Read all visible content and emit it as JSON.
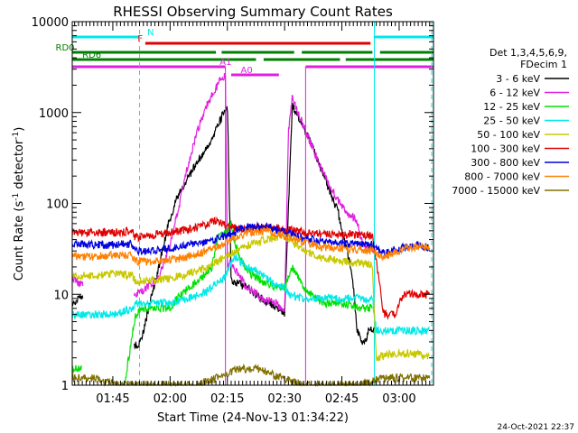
{
  "chart_data": {
    "type": "line",
    "title": "RHESSI Observing Summary Count Rates",
    "xlabel": "Start Time (24-Nov-13 01:34:22)",
    "ylabel": "Count Rate (s",
    "ylabel_sup": "-1",
    "ylabel_mid": " detector",
    "ylabel_sup2": "-1",
    "ylabel_end": ")",
    "footer": "24-Oct-2021 22:37",
    "y_scale": "log",
    "ylim": [
      1,
      10000
    ],
    "xlim": [
      "01:34:22",
      "03:09:00"
    ],
    "x_ticks": [
      "01:45",
      "02:00",
      "02:15",
      "02:30",
      "02:45",
      "03:00"
    ],
    "y_ticks": [
      "1",
      "10",
      "100",
      "1000",
      "10000"
    ],
    "legend": {
      "placement": "right",
      "header": [
        "Det 1,3,4,5,6,9,",
        "FDecim 1"
      ],
      "entries": [
        {
          "label": "3 - 6 keV",
          "color": "#000000"
        },
        {
          "label": "6 - 12 keV",
          "color": "#e020e0"
        },
        {
          "label": "12 - 25 keV",
          "color": "#00e000"
        },
        {
          "label": "25 - 50 keV",
          "color": "#00e8e8"
        },
        {
          "label": "50 - 100 keV",
          "color": "#c8c800"
        },
        {
          "label": "100 - 300 keV",
          "color": "#e00000"
        },
        {
          "label": "300 - 800 keV",
          "color": "#0000e0"
        },
        {
          "label": "800 - 7000 keV",
          "color": "#ff8000"
        },
        {
          "label": "7000 - 15000 keV",
          "color": "#807000"
        }
      ]
    },
    "flags": [
      {
        "name": "N",
        "color": "#00e8e8",
        "segments": [
          [
            "01:34:22",
            "01:52:00"
          ],
          [
            "02:53:30",
            "03:09:00"
          ]
        ],
        "label_at": "01:54:00"
      },
      {
        "name": "F",
        "color": "#e00000",
        "segments": [
          [
            "01:53:30",
            "02:52:30"
          ]
        ],
        "label_at": "01:51:30"
      },
      {
        "name": "RD0",
        "color": "#008000",
        "segments": [
          [
            "01:34:22",
            "02:12:00"
          ],
          [
            "02:13:30",
            "02:32:30"
          ],
          [
            "02:34:30",
            "02:53:00"
          ],
          [
            "02:55:00",
            "03:09:00"
          ]
        ],
        "label_at": "01:30:00"
      },
      {
        "name": "RD6",
        "color": "#008000",
        "segments": [
          [
            "01:34:22",
            "02:22:30"
          ],
          [
            "02:24:30",
            "02:44:30"
          ],
          [
            "02:46:00",
            "03:09:00"
          ]
        ],
        "label_at": "01:37:00"
      },
      {
        "name": "A1",
        "color": "#e020e0",
        "segments": [
          [
            "01:34:22",
            "02:14:30"
          ],
          [
            "02:35:30",
            "03:09:00"
          ]
        ],
        "label_at": "02:13:00"
      },
      {
        "name": "A0",
        "color": "#e020e0",
        "segments": [
          [
            "02:16:00",
            "02:28:30"
          ]
        ],
        "label_at": "02:18:30"
      }
    ],
    "series": [
      {
        "name": "3 - 6 keV",
        "color": "#000000",
        "gaps": [
          [
            "01:37:10",
            "01:50:30"
          ]
        ],
        "x": [
          "01:34:22",
          "01:36:30",
          "01:50:30",
          "01:51:30",
          "01:53:00",
          "01:57:00",
          "02:00:00",
          "02:02:00",
          "02:05:00",
          "02:08:00",
          "02:11:00",
          "02:13:00",
          "02:14:30",
          "02:15:00",
          "02:16:00",
          "02:20:00",
          "02:24:00",
          "02:28:00",
          "02:29:00",
          "02:30:00",
          "02:32:00",
          "02:35:00",
          "02:38:00",
          "02:41:00",
          "02:44:00",
          "02:46:00",
          "02:47:00",
          "02:48:00",
          "02:49:00",
          "02:50:00",
          "02:51:00",
          "02:52:00",
          "02:53:30"
        ],
        "y": [
          8,
          9,
          3,
          2.5,
          4,
          20,
          70,
          120,
          200,
          330,
          500,
          800,
          1100,
          1200,
          14,
          12,
          9,
          7,
          7,
          6,
          1200,
          700,
          350,
          170,
          80,
          35,
          22,
          12,
          4,
          3,
          3,
          4,
          4
        ]
      },
      {
        "name": "6 - 12 keV",
        "color": "#e020e0",
        "gaps": [
          [
            "01:37:10",
            "01:50:30"
          ]
        ],
        "x": [
          "01:34:22",
          "01:36:30",
          "01:50:30",
          "01:52:00",
          "01:54:00",
          "01:57:00",
          "02:00:00",
          "02:02:00",
          "02:04:00",
          "02:07:00",
          "02:10:00",
          "02:13:00",
          "02:14:30",
          "02:15:00",
          "02:16:00",
          "02:20:00",
          "02:24:00",
          "02:28:00",
          "02:29:00",
          "02:30:00",
          "02:31:00",
          "02:32:00",
          "02:35:00",
          "02:38:00",
          "02:41:00",
          "02:44:00",
          "02:47:00",
          "02:49:00",
          "02:50:00",
          "02:51:00",
          "02:52:00",
          "02:53:30"
        ],
        "y": [
          15,
          13,
          10,
          10,
          12,
          15,
          35,
          80,
          200,
          600,
          1300,
          2200,
          2600,
          20,
          22,
          12,
          9,
          8,
          7,
          7,
          600,
          1500,
          700,
          350,
          180,
          110,
          75,
          65,
          40,
          35,
          32,
          30
        ]
      },
      {
        "name": "12 - 25 keV",
        "color": "#00e000",
        "gaps": [
          [
            "01:37:00",
            "01:48:00"
          ]
        ],
        "x": [
          "01:34:22",
          "01:36:30",
          "01:48:00",
          "01:51:00",
          "01:53:00",
          "01:55:00",
          "01:58:00",
          "02:00:00",
          "02:02:00",
          "02:05:00",
          "02:08:00",
          "02:11:00",
          "02:12:00",
          "02:13:00",
          "02:14:00",
          "02:15:00",
          "02:16:00",
          "02:17:00",
          "02:20:00",
          "02:24:00",
          "02:28:00",
          "02:30:00",
          "02:32:00",
          "02:35:00",
          "02:40:00",
          "02:45:00",
          "02:50:00",
          "02:53:00"
        ],
        "y": [
          1.5,
          1.5,
          1,
          6,
          7,
          7,
          7,
          7,
          9,
          12,
          15,
          20,
          35,
          45,
          45,
          50,
          60,
          35,
          18,
          14,
          12,
          12,
          20,
          12,
          8,
          8,
          7,
          7
        ]
      },
      {
        "name": "25 - 50 keV",
        "color": "#00e8e8",
        "x": [
          "01:34:22",
          "01:40:00",
          "01:46:00",
          "01:50:00",
          "01:51:00",
          "01:55:00",
          "02:00:00",
          "02:05:00",
          "02:10:00",
          "02:14:00",
          "02:17:00",
          "02:20:00",
          "02:23:00",
          "02:27:00",
          "02:30:00",
          "02:31:00",
          "02:35:00",
          "02:40:00",
          "02:45:00",
          "02:50:00",
          "02:53:00",
          "02:54:00",
          "02:56:00",
          "03:00:00",
          "03:05:00",
          "03:08:00"
        ],
        "y": [
          6,
          6,
          6,
          7,
          8,
          8,
          8,
          9,
          11,
          15,
          26,
          20,
          18,
          13,
          12,
          10,
          9,
          9,
          9,
          9,
          9,
          4,
          4,
          4,
          4,
          4
        ]
      },
      {
        "name": "50 - 100 keV",
        "color": "#c8c800",
        "x": [
          "01:34:22",
          "01:40:00",
          "01:46:00",
          "01:50:00",
          "01:51:00",
          "01:55:00",
          "02:00:00",
          "02:05:00",
          "02:10:00",
          "02:15:00",
          "02:20:00",
          "02:25:00",
          "02:30:00",
          "02:35:00",
          "02:40:00",
          "02:45:00",
          "02:50:00",
          "02:53:00",
          "02:54:00",
          "02:58:00",
          "03:02:00",
          "03:05:00",
          "03:08:00"
        ],
        "y": [
          16,
          16,
          17,
          16,
          14,
          14,
          15,
          17,
          20,
          27,
          34,
          40,
          44,
          30,
          25,
          23,
          22,
          21,
          2,
          2.2,
          2.2,
          2.2,
          2
        ]
      },
      {
        "name": "100 - 300 keV",
        "color": "#e00000",
        "x": [
          "01:34:22",
          "01:40:00",
          "01:46:00",
          "01:50:00",
          "01:51:00",
          "01:55:00",
          "02:00:00",
          "02:05:00",
          "02:10:00",
          "02:12:00",
          "02:15:00",
          "02:20:00",
          "02:25:00",
          "02:30:00",
          "02:35:00",
          "02:40:00",
          "02:45:00",
          "02:50:00",
          "02:53:00",
          "02:56:00",
          "02:59:00",
          "03:01:00",
          "03:05:00",
          "03:08:00"
        ],
        "y": [
          48,
          48,
          48,
          50,
          42,
          45,
          48,
          52,
          60,
          65,
          55,
          52,
          55,
          52,
          48,
          46,
          46,
          45,
          44,
          6,
          6,
          10,
          10,
          10
        ]
      },
      {
        "name": "300 - 800 keV",
        "color": "#0000e0",
        "x": [
          "01:34:22",
          "01:40:00",
          "01:46:00",
          "01:50:00",
          "01:51:00",
          "01:55:00",
          "02:00:00",
          "02:05:00",
          "02:10:00",
          "02:14:00",
          "02:20:00",
          "02:25:00",
          "02:30:00",
          "02:35:00",
          "02:40:00",
          "02:45:00",
          "02:50:00",
          "02:53:00",
          "02:56:00",
          "03:00:00",
          "03:05:00",
          "03:08:00"
        ],
        "y": [
          36,
          35,
          35,
          36,
          30,
          30,
          32,
          35,
          38,
          43,
          55,
          55,
          48,
          42,
          38,
          36,
          35,
          35,
          28,
          32,
          35,
          32
        ]
      },
      {
        "name": "800 - 7000 keV",
        "color": "#ff8000",
        "x": [
          "01:34:22",
          "01:40:00",
          "01:46:00",
          "01:50:00",
          "01:51:00",
          "01:55:00",
          "02:00:00",
          "02:05:00",
          "02:10:00",
          "02:15:00",
          "02:20:00",
          "02:25:00",
          "02:30:00",
          "02:35:00",
          "02:40:00",
          "02:45:00",
          "02:50:00",
          "02:53:00",
          "02:56:00",
          "03:00:00",
          "03:05:00",
          "03:08:00"
        ],
        "y": [
          26,
          26,
          27,
          27,
          23,
          23,
          24,
          26,
          30,
          38,
          48,
          50,
          44,
          38,
          33,
          32,
          31,
          30,
          26,
          30,
          34,
          32
        ]
      },
      {
        "name": "7000 - 15000 keV",
        "color": "#807000",
        "x": [
          "01:34:22",
          "01:40:00",
          "01:46:00",
          "01:52:00",
          "02:06:00",
          "02:12:00",
          "02:18:00",
          "02:24:00",
          "02:29:00",
          "02:35:00",
          "02:50:00",
          "02:55:00",
          "03:00:00",
          "03:05:00",
          "03:08:00"
        ],
        "y": [
          1.2,
          1.2,
          1,
          1,
          1,
          1.2,
          1.5,
          1.5,
          1.2,
          1,
          1,
          1.2,
          1.2,
          1.2,
          1.2
        ]
      }
    ]
  }
}
